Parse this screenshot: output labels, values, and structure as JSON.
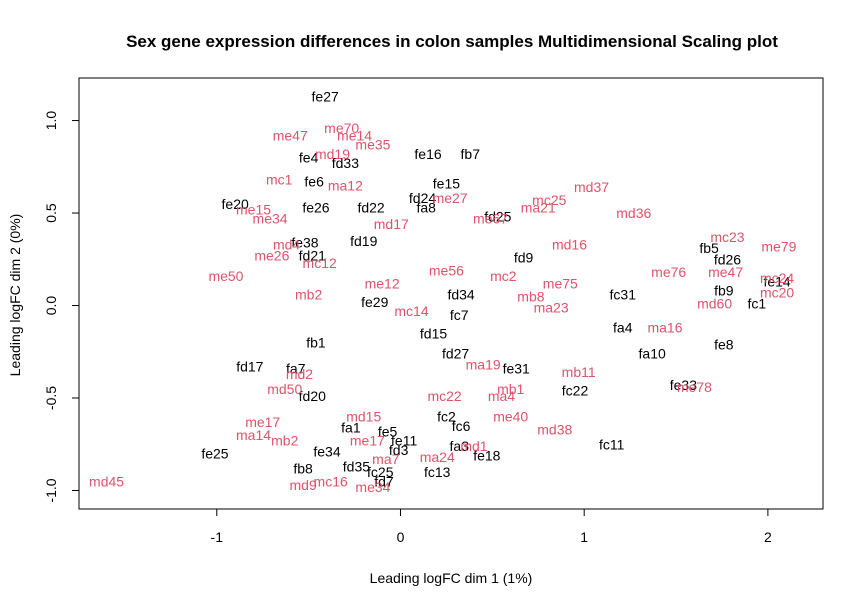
{
  "chart_data": {
    "type": "scatter",
    "title": "Sex gene expression differences in colon samples Multidimensional Scaling plot",
    "xlabel": "Leading logFC dim 1 (1%)",
    "ylabel": "Leading logFC dim 2 (0%)",
    "xlim": [
      -1.75,
      2.3
    ],
    "ylim": [
      -1.1,
      1.23
    ],
    "xticks": [
      -1,
      0,
      1,
      2
    ],
    "yticks": [
      -1.0,
      -0.5,
      0.0,
      0.5,
      1.0
    ],
    "xtick_labels": [
      "-1",
      "0",
      "1",
      "2"
    ],
    "ytick_labels": [
      "-1.0",
      "-0.5",
      "0.0",
      "0.5",
      "1.0"
    ],
    "grid": false,
    "colors": {
      "female": "#000000",
      "male": "#DF536B"
    },
    "points": [
      {
        "label": "fe27",
        "x": -0.41,
        "y": 1.13,
        "group": "female"
      },
      {
        "label": "me70",
        "x": -0.32,
        "y": 0.96,
        "group": "male"
      },
      {
        "label": "me35",
        "x": -0.15,
        "y": 0.87,
        "group": "male"
      },
      {
        "label": "fe16",
        "x": 0.15,
        "y": 0.82,
        "group": "female"
      },
      {
        "label": "fb7",
        "x": 0.38,
        "y": 0.82,
        "group": "female"
      },
      {
        "label": "fe4",
        "x": -0.5,
        "y": 0.8,
        "group": "female"
      },
      {
        "label": "fd33",
        "x": -0.3,
        "y": 0.77,
        "group": "female"
      },
      {
        "label": "fe15",
        "x": 0.25,
        "y": 0.66,
        "group": "female"
      },
      {
        "label": "fe6",
        "x": -0.47,
        "y": 0.67,
        "group": "female"
      },
      {
        "label": "fd24",
        "x": 0.12,
        "y": 0.58,
        "group": "female"
      },
      {
        "label": "fe20",
        "x": -0.9,
        "y": 0.55,
        "group": "female"
      },
      {
        "label": "fa8",
        "x": 0.14,
        "y": 0.53,
        "group": "female"
      },
      {
        "label": "fd22",
        "x": -0.16,
        "y": 0.53,
        "group": "female"
      },
      {
        "label": "fe26",
        "x": -0.46,
        "y": 0.53,
        "group": "female"
      },
      {
        "label": "fd25",
        "x": 0.53,
        "y": 0.48,
        "group": "female"
      },
      {
        "label": "fd19",
        "x": -0.2,
        "y": 0.35,
        "group": "female"
      },
      {
        "label": "fe38",
        "x": -0.52,
        "y": 0.34,
        "group": "female"
      },
      {
        "label": "fd9",
        "x": 0.67,
        "y": 0.26,
        "group": "female"
      },
      {
        "label": "fd21",
        "x": -0.48,
        "y": 0.27,
        "group": "female"
      },
      {
        "label": "fb5",
        "x": 1.68,
        "y": 0.31,
        "group": "female"
      },
      {
        "label": "fd26",
        "x": 1.78,
        "y": 0.25,
        "group": "female"
      },
      {
        "label": "fe14",
        "x": 2.05,
        "y": 0.13,
        "group": "female"
      },
      {
        "label": "fb9",
        "x": 1.76,
        "y": 0.08,
        "group": "female"
      },
      {
        "label": "fd34",
        "x": 0.33,
        "y": 0.06,
        "group": "female"
      },
      {
        "label": "fc31",
        "x": 1.21,
        "y": 0.06,
        "group": "female"
      },
      {
        "label": "fc1",
        "x": 1.94,
        "y": 0.01,
        "group": "female"
      },
      {
        "label": "fe29",
        "x": -0.14,
        "y": 0.02,
        "group": "female"
      },
      {
        "label": "fc7",
        "x": 0.32,
        "y": -0.05,
        "group": "female"
      },
      {
        "label": "fd15",
        "x": 0.18,
        "y": -0.15,
        "group": "female"
      },
      {
        "label": "fa4",
        "x": 1.21,
        "y": -0.12,
        "group": "female"
      },
      {
        "label": "fe8",
        "x": 1.76,
        "y": -0.21,
        "group": "female"
      },
      {
        "label": "fd27",
        "x": 0.3,
        "y": -0.26,
        "group": "female"
      },
      {
        "label": "fa10",
        "x": 1.37,
        "y": -0.26,
        "group": "female"
      },
      {
        "label": "fd17",
        "x": -0.82,
        "y": -0.33,
        "group": "female"
      },
      {
        "label": "fe31",
        "x": 0.63,
        "y": -0.34,
        "group": "female"
      },
      {
        "label": "fe33",
        "x": 1.54,
        "y": -0.43,
        "group": "female"
      },
      {
        "label": "fc22",
        "x": 0.95,
        "y": -0.46,
        "group": "female"
      },
      {
        "label": "fc11",
        "x": 1.15,
        "y": -0.75,
        "group": "female"
      },
      {
        "label": "fe18",
        "x": 0.47,
        "y": -0.81,
        "group": "female"
      },
      {
        "label": "fa3",
        "x": 0.32,
        "y": -0.76,
        "group": "female"
      },
      {
        "label": "fe25",
        "x": -1.01,
        "y": -0.8,
        "group": "female"
      },
      {
        "label": "fe34",
        "x": -0.4,
        "y": -0.79,
        "group": "female"
      },
      {
        "label": "fd35",
        "x": -0.24,
        "y": -0.87,
        "group": "female"
      },
      {
        "label": "fc25",
        "x": -0.11,
        "y": -0.9,
        "group": "female"
      },
      {
        "label": "fc13",
        "x": 0.2,
        "y": -0.9,
        "group": "female"
      },
      {
        "label": "fb8",
        "x": -0.53,
        "y": -0.88,
        "group": "female"
      },
      {
        "label": "fd7",
        "x": -0.09,
        "y": -0.95,
        "group": "female"
      },
      {
        "label": "fd3",
        "x": -0.01,
        "y": -0.78,
        "group": "female"
      },
      {
        "label": "fe11",
        "x": 0.02,
        "y": -0.73,
        "group": "female"
      },
      {
        "label": "fa1",
        "x": -0.27,
        "y": -0.66,
        "group": "female"
      },
      {
        "label": "fe5",
        "x": -0.07,
        "y": -0.68,
        "group": "female"
      },
      {
        "label": "fd20",
        "x": -0.48,
        "y": -0.49,
        "group": "female"
      },
      {
        "label": "fc2",
        "x": 0.25,
        "y": -0.6,
        "group": "female"
      },
      {
        "label": "fc6",
        "x": 0.33,
        "y": -0.65,
        "group": "female"
      },
      {
        "label": "fa7",
        "x": -0.57,
        "y": -0.34,
        "group": "female"
      },
      {
        "label": "fb1",
        "x": -0.46,
        "y": -0.2,
        "group": "female"
      },
      {
        "label": "me47",
        "x": -0.6,
        "y": 0.92,
        "group": "male"
      },
      {
        "label": "me14",
        "x": -0.25,
        "y": 0.92,
        "group": "male"
      },
      {
        "label": "md19",
        "x": -0.37,
        "y": 0.82,
        "group": "male"
      },
      {
        "label": "mc1",
        "x": -0.66,
        "y": 0.68,
        "group": "male"
      },
      {
        "label": "me27",
        "x": 0.27,
        "y": 0.58,
        "group": "male"
      },
      {
        "label": "md37",
        "x": 1.04,
        "y": 0.64,
        "group": "male"
      },
      {
        "label": "mc25",
        "x": 0.81,
        "y": 0.57,
        "group": "male"
      },
      {
        "label": "ma21",
        "x": 0.75,
        "y": 0.53,
        "group": "male"
      },
      {
        "label": "me67",
        "x": 0.49,
        "y": 0.47,
        "group": "male"
      },
      {
        "label": "md36",
        "x": 1.27,
        "y": 0.5,
        "group": "male"
      },
      {
        "label": "me15",
        "x": -0.8,
        "y": 0.52,
        "group": "male"
      },
      {
        "label": "me34",
        "x": -0.71,
        "y": 0.47,
        "group": "male"
      },
      {
        "label": "md17",
        "x": -0.05,
        "y": 0.44,
        "group": "male"
      },
      {
        "label": "md4",
        "x": -0.62,
        "y": 0.33,
        "group": "male"
      },
      {
        "label": "me26",
        "x": -0.7,
        "y": 0.27,
        "group": "male"
      },
      {
        "label": "mc23",
        "x": 1.78,
        "y": 0.37,
        "group": "male"
      },
      {
        "label": "me79",
        "x": 2.06,
        "y": 0.32,
        "group": "male"
      },
      {
        "label": "md16",
        "x": 0.92,
        "y": 0.33,
        "group": "male"
      },
      {
        "label": "mc12",
        "x": -0.44,
        "y": 0.23,
        "group": "male"
      },
      {
        "label": "me56",
        "x": 0.25,
        "y": 0.19,
        "group": "male"
      },
      {
        "label": "mc2",
        "x": 0.56,
        "y": 0.16,
        "group": "male"
      },
      {
        "label": "me50",
        "x": -0.95,
        "y": 0.16,
        "group": "male"
      },
      {
        "label": "me76",
        "x": 1.46,
        "y": 0.18,
        "group": "male"
      },
      {
        "label": "me47",
        "x": 1.77,
        "y": 0.18,
        "group": "male"
      },
      {
        "label": "me75",
        "x": 0.87,
        "y": 0.12,
        "group": "male"
      },
      {
        "label": "mb8",
        "x": 0.71,
        "y": 0.05,
        "group": "male"
      },
      {
        "label": "mc24",
        "x": 2.05,
        "y": 0.15,
        "group": "male"
      },
      {
        "label": "mc20",
        "x": 2.05,
        "y": 0.07,
        "group": "male"
      },
      {
        "label": "md60",
        "x": 1.71,
        "y": 0.01,
        "group": "male"
      },
      {
        "label": "ma23",
        "x": 0.82,
        "y": -0.01,
        "group": "male"
      },
      {
        "label": "ma16",
        "x": 1.44,
        "y": -0.12,
        "group": "male"
      },
      {
        "label": "mb2",
        "x": -0.5,
        "y": 0.06,
        "group": "male"
      },
      {
        "label": "mc14",
        "x": 0.06,
        "y": -0.03,
        "group": "male"
      },
      {
        "label": "md2",
        "x": -0.55,
        "y": -0.37,
        "group": "male"
      },
      {
        "label": "ma19",
        "x": 0.45,
        "y": -0.32,
        "group": "male"
      },
      {
        "label": "mb11",
        "x": 0.97,
        "y": -0.36,
        "group": "male"
      },
      {
        "label": "mb1",
        "x": 0.6,
        "y": -0.45,
        "group": "male"
      },
      {
        "label": "mc22",
        "x": 0.24,
        "y": -0.49,
        "group": "male"
      },
      {
        "label": "ma4",
        "x": 0.55,
        "y": -0.49,
        "group": "male"
      },
      {
        "label": "me78",
        "x": 1.6,
        "y": -0.44,
        "group": "male"
      },
      {
        "label": "md50",
        "x": -0.63,
        "y": -0.45,
        "group": "male"
      },
      {
        "label": "me40",
        "x": 0.6,
        "y": -0.6,
        "group": "male"
      },
      {
        "label": "md38",
        "x": 0.84,
        "y": -0.67,
        "group": "male"
      },
      {
        "label": "md1",
        "x": 0.4,
        "y": -0.76,
        "group": "male"
      },
      {
        "label": "ma24",
        "x": 0.2,
        "y": -0.82,
        "group": "male"
      },
      {
        "label": "me17",
        "x": -0.18,
        "y": -0.73,
        "group": "male"
      },
      {
        "label": "ma7",
        "x": -0.08,
        "y": -0.83,
        "group": "male"
      },
      {
        "label": "ma14",
        "x": -0.8,
        "y": -0.7,
        "group": "male"
      },
      {
        "label": "me17",
        "x": -0.75,
        "y": -0.63,
        "group": "male"
      },
      {
        "label": "mb2",
        "x": -0.63,
        "y": -0.73,
        "group": "male"
      },
      {
        "label": "mc16",
        "x": -0.38,
        "y": -0.95,
        "group": "male"
      },
      {
        "label": "md9",
        "x": -0.53,
        "y": -0.97,
        "group": "male"
      },
      {
        "label": "me34",
        "x": -0.15,
        "y": -0.98,
        "group": "male"
      },
      {
        "label": "md45",
        "x": -1.6,
        "y": -0.95,
        "group": "male"
      },
      {
        "label": "md15",
        "x": -0.2,
        "y": -0.6,
        "group": "male"
      },
      {
        "label": "ma12",
        "x": -0.3,
        "y": 0.65,
        "group": "male"
      },
      {
        "label": "me12",
        "x": -0.1,
        "y": 0.12,
        "group": "male"
      }
    ]
  }
}
